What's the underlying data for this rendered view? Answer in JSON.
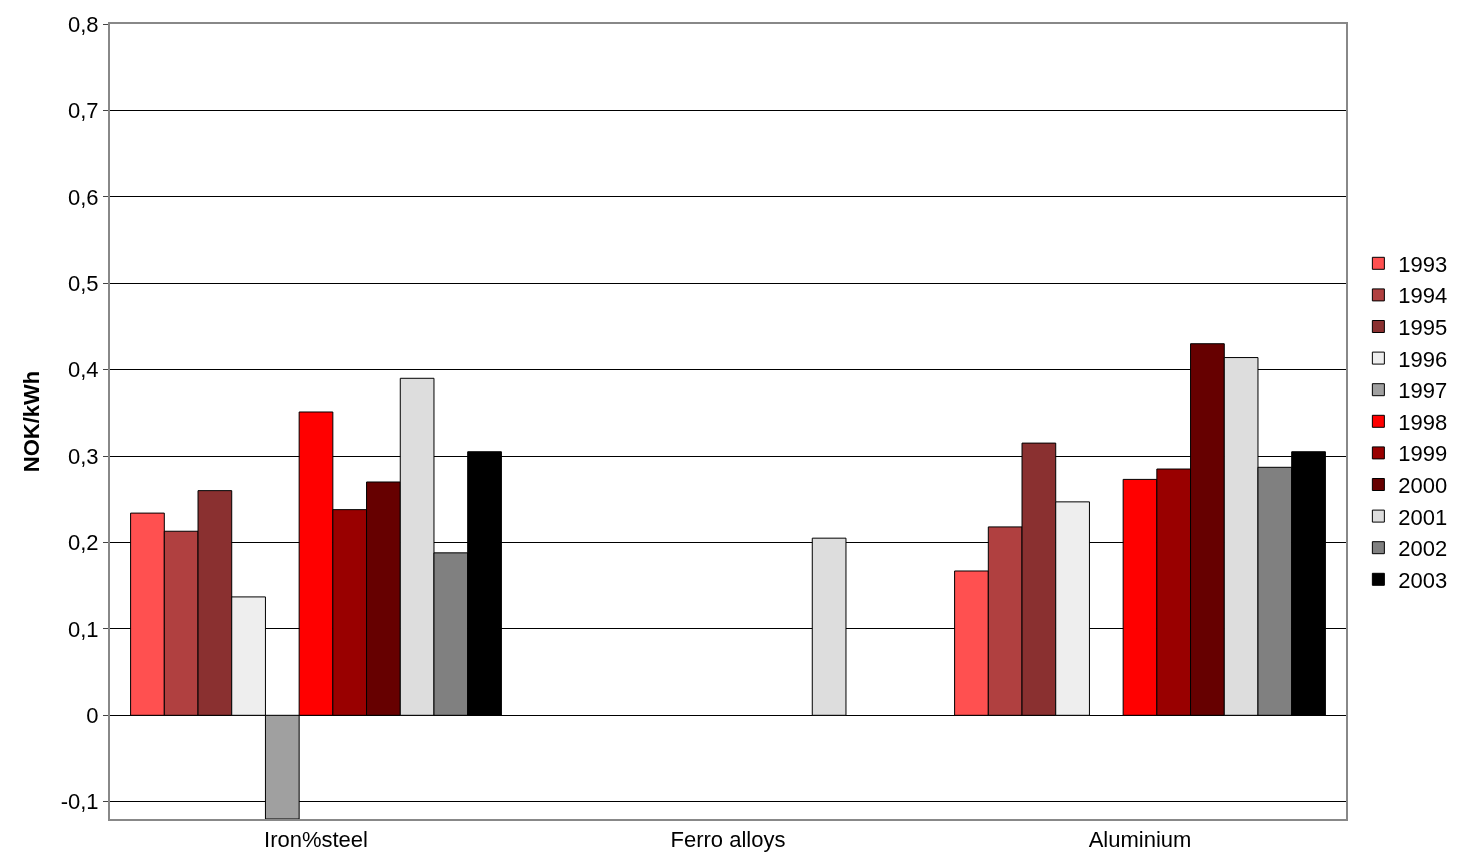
{
  "chart_data": {
    "type": "bar",
    "ylabel": "NOK/kWh",
    "categories": [
      "Iron%steel",
      "Ferro alloys",
      "Aluminium"
    ],
    "series": [
      {
        "name": "1993",
        "color": "#ff5050",
        "values": [
          0.234,
          null,
          0.167
        ]
      },
      {
        "name": "1994",
        "color": "#b04040",
        "values": [
          0.213,
          null,
          0.218
        ]
      },
      {
        "name": "1995",
        "color": "#8a3030",
        "values": [
          0.26,
          null,
          0.315
        ]
      },
      {
        "name": "1996",
        "color": "#eeeeee",
        "values": [
          0.137,
          null,
          0.247
        ]
      },
      {
        "name": "1997",
        "color": "#a0a0a0",
        "values": [
          -0.12,
          null,
          null
        ]
      },
      {
        "name": "1998",
        "color": "#ff0000",
        "values": [
          0.351,
          null,
          0.273
        ]
      },
      {
        "name": "1999",
        "color": "#990000",
        "values": [
          0.238,
          null,
          0.285
        ]
      },
      {
        "name": "2000",
        "color": "#660000",
        "values": [
          0.27,
          null,
          0.43
        ]
      },
      {
        "name": "2001",
        "color": "#dddddd",
        "values": [
          0.39,
          0.205,
          0.414
        ]
      },
      {
        "name": "2002",
        "color": "#808080",
        "values": [
          0.188,
          null,
          0.287
        ]
      },
      {
        "name": "2003",
        "color": "#000000",
        "values": [
          0.305,
          null,
          0.305
        ]
      }
    ],
    "ylim": [
      -0.12,
      0.8
    ],
    "yticks": [
      {
        "value": -0.1,
        "label": "-0,1"
      },
      {
        "value": 0,
        "label": "0"
      },
      {
        "value": 0.1,
        "label": "0,1"
      },
      {
        "value": 0.2,
        "label": "0,2"
      },
      {
        "value": 0.3,
        "label": "0,3"
      },
      {
        "value": 0.4,
        "label": "0,4"
      },
      {
        "value": 0.5,
        "label": "0,5"
      },
      {
        "value": 0.6,
        "label": "0,6"
      },
      {
        "value": 0.7,
        "label": "0,7"
      },
      {
        "value": 0.8,
        "label": "0,8"
      }
    ],
    "grid": "y",
    "legend": "right"
  }
}
